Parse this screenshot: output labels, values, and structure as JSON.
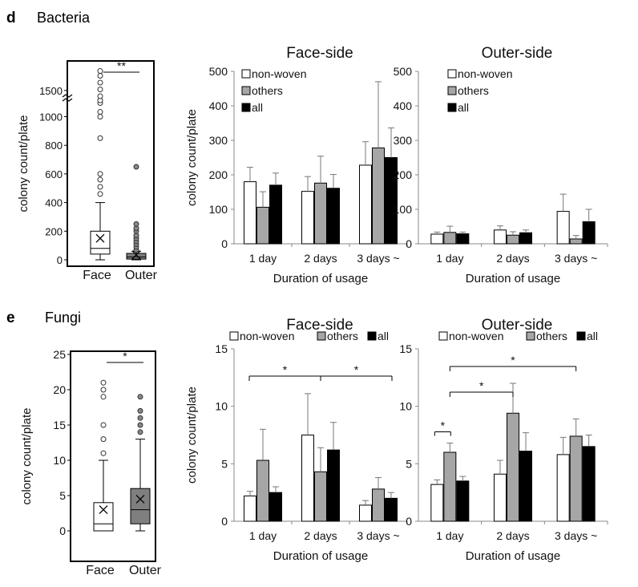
{
  "panels": {
    "d": {
      "letter": "d",
      "title": "Bacteria"
    },
    "e": {
      "letter": "e",
      "title": "Fungi"
    }
  },
  "colors": {
    "non_woven": "#ffffff",
    "others": "#a6a6a6",
    "all": "#000000",
    "outer_box": "#7f7f7f",
    "face_box": "#ffffff"
  },
  "chart_data": [
    {
      "type": "box",
      "panel": "d",
      "categories": [
        "Face",
        "Outer"
      ],
      "ylabel": "colony count/plate",
      "yticks": [
        "0",
        "200",
        "400",
        "600",
        "800",
        "1000",
        "1500"
      ],
      "axis_break": true,
      "significance": "**",
      "boxes": [
        {
          "name": "Face",
          "q1": 40,
          "median": 80,
          "q3": 200,
          "whisker_low": 0,
          "whisker_high": 400,
          "mean": 150,
          "outliers": [
            460,
            510,
            560,
            600,
            850,
            1000,
            1070,
            1200,
            1240,
            1300,
            1400,
            1500,
            1600,
            1670
          ]
        },
        {
          "name": "Outer",
          "q1": 5,
          "median": 20,
          "q3": 45,
          "whisker_low": 0,
          "whisker_high": 60,
          "mean": 35,
          "outliers": [
            70,
            90,
            110,
            130,
            150,
            170,
            200,
            220,
            250,
            650
          ]
        }
      ]
    },
    {
      "type": "bar",
      "panel": "d",
      "title": "Face-side",
      "xlabel": "Duration of usage",
      "ylabel": "colony count/plate",
      "ylim": [
        0,
        500
      ],
      "yticks": [
        0,
        100,
        200,
        300,
        400,
        500
      ],
      "categories": [
        "1 day",
        "2 days",
        "3 days ~"
      ],
      "series": [
        {
          "name": "non-woven",
          "values": [
            180,
            152,
            228
          ],
          "errors": [
            42,
            43,
            68
          ]
        },
        {
          "name": "others",
          "values": [
            106,
            176,
            278
          ],
          "errors": [
            45,
            78,
            192
          ]
        },
        {
          "name": "all",
          "values": [
            170,
            161,
            250
          ],
          "errors": [
            35,
            40,
            86
          ]
        }
      ]
    },
    {
      "type": "bar",
      "panel": "d",
      "title": "Outer-side",
      "xlabel": "Duration of usage",
      "ylim": [
        0,
        500
      ],
      "yticks": [
        0,
        100,
        200,
        300,
        400,
        500
      ],
      "categories": [
        "1 day",
        "2 days",
        "3 days ~"
      ],
      "series": [
        {
          "name": "non-woven",
          "values": [
            28,
            40,
            94
          ],
          "errors": [
            6,
            12,
            50
          ]
        },
        {
          "name": "others",
          "values": [
            33,
            25,
            14
          ],
          "errors": [
            18,
            10,
            10
          ]
        },
        {
          "name": "all",
          "values": [
            29,
            32,
            64
          ],
          "errors": [
            5,
            8,
            36
          ]
        }
      ]
    },
    {
      "type": "box",
      "panel": "e",
      "categories": [
        "Face",
        "Outer"
      ],
      "ylabel": "colony count/plate",
      "ylim": [
        0,
        25
      ],
      "yticks": [
        0,
        5,
        10,
        15,
        20,
        25
      ],
      "significance": "*",
      "boxes": [
        {
          "name": "Face",
          "q1": 0,
          "median": 1,
          "q3": 4,
          "whisker_low": 0,
          "whisker_high": 10,
          "mean": 3,
          "outliers": [
            11,
            13,
            15,
            19,
            20,
            21
          ]
        },
        {
          "name": "Outer",
          "q1": 1,
          "median": 3,
          "q3": 6,
          "whisker_low": 0,
          "whisker_high": 13,
          "mean": 4.5,
          "outliers": [
            14,
            15,
            16,
            17,
            19
          ]
        }
      ]
    },
    {
      "type": "bar",
      "panel": "e",
      "title": "Face-side",
      "xlabel": "Duration of usage",
      "ylabel": "colony count/plate",
      "ylim": [
        0,
        15
      ],
      "yticks": [
        0,
        5,
        10,
        15
      ],
      "categories": [
        "1 day",
        "2 days",
        "3 days ~"
      ],
      "series": [
        {
          "name": "non-woven",
          "values": [
            2.2,
            7.5,
            1.4
          ],
          "errors": [
            0.4,
            3.6,
            0.4
          ]
        },
        {
          "name": "others",
          "values": [
            5.3,
            4.3,
            2.8
          ],
          "errors": [
            2.7,
            2.1,
            1.0
          ]
        },
        {
          "name": "all",
          "values": [
            2.5,
            6.2,
            2.0
          ],
          "errors": [
            0.5,
            2.4,
            0.5
          ]
        }
      ],
      "significance": [
        {
          "from": "2 days",
          "to": "1 day",
          "label": "*"
        },
        {
          "from": "2 days",
          "to": "3 days ~",
          "label": "*"
        }
      ]
    },
    {
      "type": "bar",
      "panel": "e",
      "title": "Outer-side",
      "xlabel": "Duration of usage",
      "ylim": [
        0,
        15
      ],
      "yticks": [
        0,
        5,
        10,
        15
      ],
      "categories": [
        "1 day",
        "2 days",
        "3 days ~"
      ],
      "series": [
        {
          "name": "non-woven",
          "values": [
            3.2,
            4.1,
            5.8
          ],
          "errors": [
            0.4,
            1.2,
            1.5
          ]
        },
        {
          "name": "others",
          "values": [
            6.0,
            9.4,
            7.4
          ],
          "errors": [
            0.8,
            2.6,
            1.5
          ]
        },
        {
          "name": "all",
          "values": [
            3.5,
            6.1,
            6.5
          ],
          "errors": [
            0.4,
            1.6,
            1.0
          ]
        }
      ],
      "significance": [
        {
          "from": "1 day",
          "to": "1 day",
          "label": "*"
        },
        {
          "from": "1 day",
          "to": "2 days",
          "label": "*"
        },
        {
          "from": "1 day",
          "to": "3 days ~",
          "label": "*"
        }
      ]
    }
  ]
}
